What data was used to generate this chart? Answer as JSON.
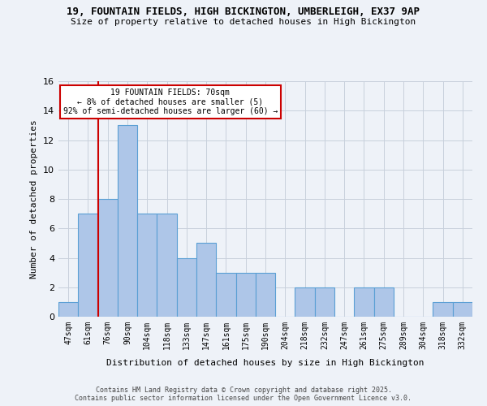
{
  "title_line1": "19, FOUNTAIN FIELDS, HIGH BICKINGTON, UMBERLEIGH, EX37 9AP",
  "title_line2": "Size of property relative to detached houses in High Bickington",
  "xlabel": "Distribution of detached houses by size in High Bickington",
  "ylabel": "Number of detached properties",
  "categories": [
    "47sqm",
    "61sqm",
    "76sqm",
    "90sqm",
    "104sqm",
    "118sqm",
    "133sqm",
    "147sqm",
    "161sqm",
    "175sqm",
    "190sqm",
    "204sqm",
    "218sqm",
    "232sqm",
    "247sqm",
    "261sqm",
    "275sqm",
    "289sqm",
    "304sqm",
    "318sqm",
    "332sqm"
  ],
  "values": [
    1,
    7,
    8,
    13,
    7,
    7,
    4,
    5,
    3,
    3,
    3,
    0,
    2,
    2,
    0,
    2,
    2,
    0,
    0,
    1,
    1
  ],
  "bar_color": "#aec6e8",
  "bar_edge_color": "#5a9fd4",
  "grid_color": "#c8d0dc",
  "vline_x": 1.5,
  "vline_color": "#cc0000",
  "annotation_text": "19 FOUNTAIN FIELDS: 70sqm\n← 8% of detached houses are smaller (5)\n92% of semi-detached houses are larger (60) →",
  "annotation_box_color": "#cc0000",
  "ylim": [
    0,
    16
  ],
  "yticks": [
    0,
    2,
    4,
    6,
    8,
    10,
    12,
    14,
    16
  ],
  "footer": "Contains HM Land Registry data © Crown copyright and database right 2025.\nContains public sector information licensed under the Open Government Licence v3.0.",
  "background_color": "#eef2f8"
}
